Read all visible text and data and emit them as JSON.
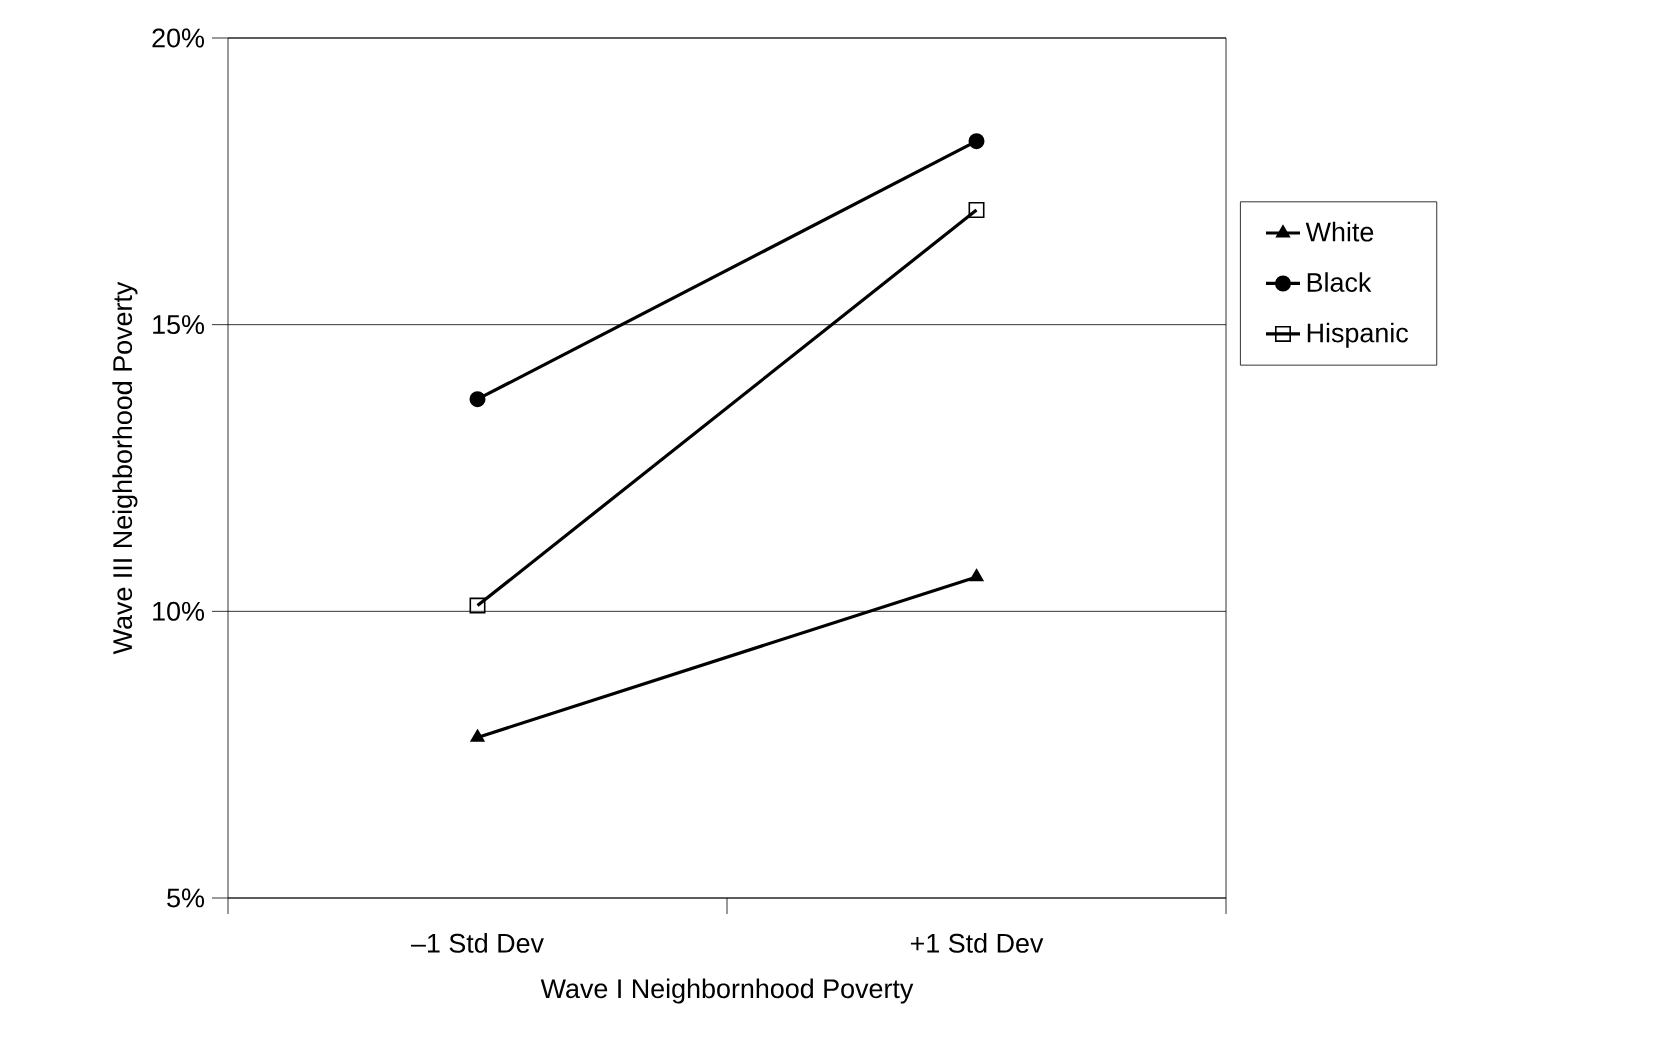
{
  "chart_data": {
    "type": "line",
    "xlabel": "Wave I Neighbornhood Poverty",
    "ylabel": "Wave III Neighborhood Poverty",
    "categories": [
      "–1 Std Dev",
      "+1 Std Dev"
    ],
    "series": [
      {
        "name": "White",
        "color": "#000000",
        "marker": "triangle",
        "values": [
          7.8,
          10.6
        ]
      },
      {
        "name": "Black",
        "color": "#000000",
        "marker": "circle",
        "values": [
          13.7,
          18.2
        ]
      },
      {
        "name": "Hispanic",
        "color": "#000000",
        "marker": "square",
        "values": [
          10.1,
          17.0
        ]
      }
    ],
    "ylim": [
      5,
      20
    ],
    "yticks": [
      {
        "value": 5,
        "label": "5%"
      },
      {
        "value": 10,
        "label": "10%"
      },
      {
        "value": 15,
        "label": "15%"
      },
      {
        "value": 20,
        "label": "20%"
      }
    ],
    "grid": "y",
    "legend": "right"
  }
}
